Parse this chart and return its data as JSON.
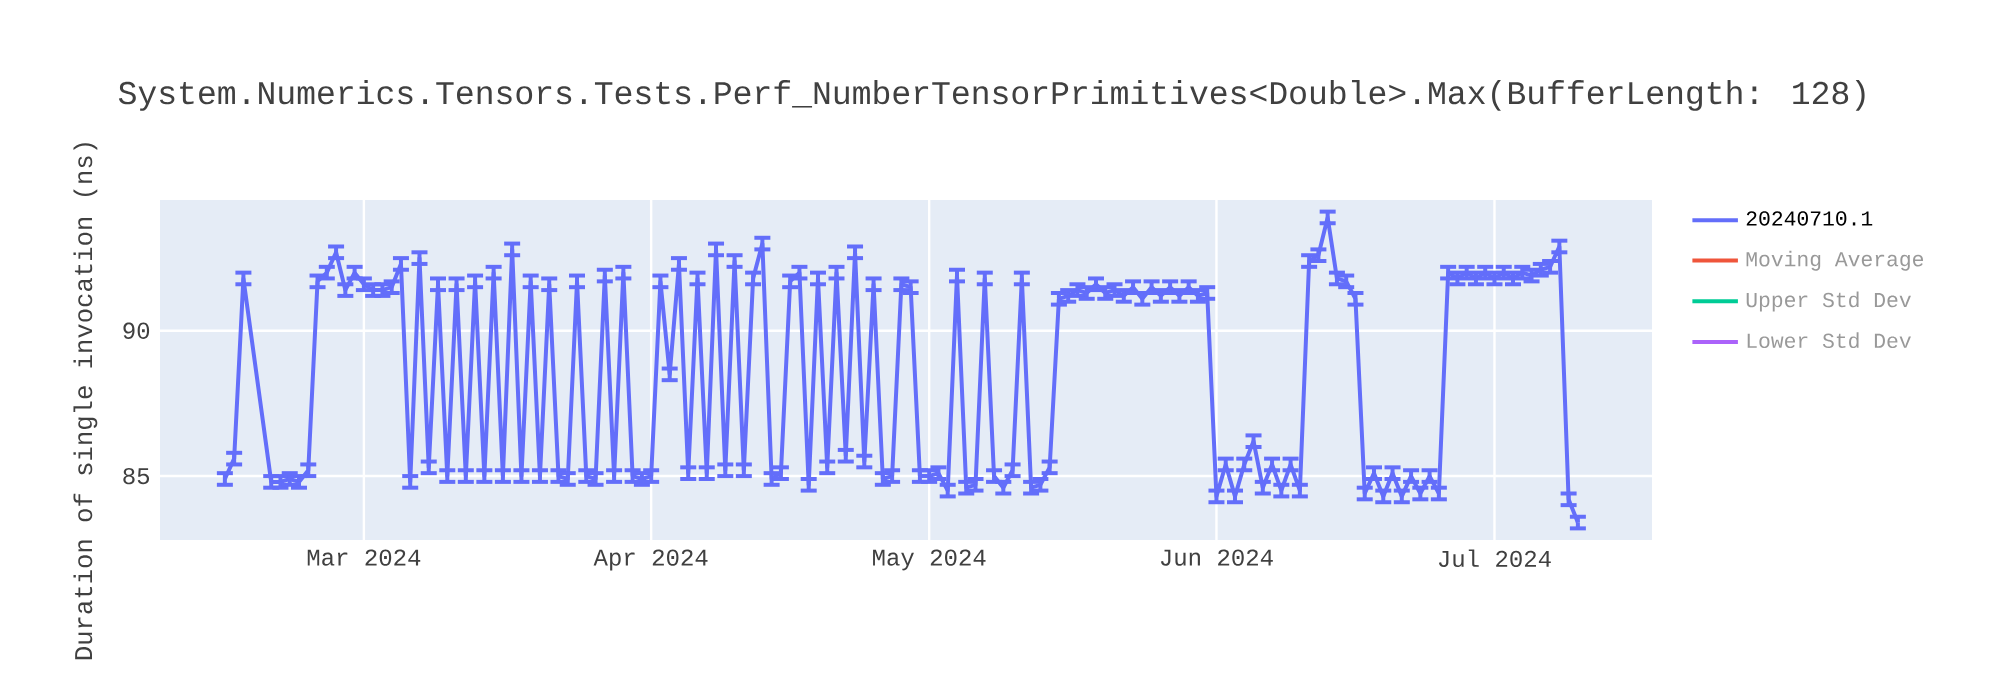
{
  "chart_data": {
    "type": "line",
    "title": "System.Numerics.Tensors.Tests.Perf_NumberTensorPrimitives<Double>.Max(BufferLength: 128)",
    "ylabel": "Duration of single invocation (ns)",
    "x": [
      "2024-02-15",
      "2024-02-16",
      "2024-02-17",
      "2024-02-20",
      "2024-02-21",
      "2024-02-22",
      "2024-02-23",
      "2024-02-24",
      "2024-02-25",
      "2024-02-26",
      "2024-02-27",
      "2024-02-28",
      "2024-02-29",
      "2024-03-01",
      "2024-03-02",
      "2024-03-03",
      "2024-03-04",
      "2024-03-05",
      "2024-03-06",
      "2024-03-07",
      "2024-03-08",
      "2024-03-09",
      "2024-03-10",
      "2024-03-11",
      "2024-03-12",
      "2024-03-13",
      "2024-03-14",
      "2024-03-15",
      "2024-03-16",
      "2024-03-17",
      "2024-03-18",
      "2024-03-19",
      "2024-03-20",
      "2024-03-21",
      "2024-03-22",
      "2024-03-23",
      "2024-03-24",
      "2024-03-25",
      "2024-03-26",
      "2024-03-27",
      "2024-03-28",
      "2024-03-29",
      "2024-03-30",
      "2024-03-31",
      "2024-04-01",
      "2024-04-02",
      "2024-04-03",
      "2024-04-04",
      "2024-04-05",
      "2024-04-06",
      "2024-04-07",
      "2024-04-08",
      "2024-04-09",
      "2024-04-10",
      "2024-04-11",
      "2024-04-12",
      "2024-04-13",
      "2024-04-14",
      "2024-04-15",
      "2024-04-16",
      "2024-04-17",
      "2024-04-18",
      "2024-04-19",
      "2024-04-20",
      "2024-04-21",
      "2024-04-22",
      "2024-04-23",
      "2024-04-24",
      "2024-04-25",
      "2024-04-26",
      "2024-04-27",
      "2024-04-28",
      "2024-04-29",
      "2024-04-30",
      "2024-05-01",
      "2024-05-02",
      "2024-05-03",
      "2024-05-04",
      "2024-05-05",
      "2024-05-06",
      "2024-05-07",
      "2024-05-08",
      "2024-05-09",
      "2024-05-10",
      "2024-05-11",
      "2024-05-12",
      "2024-05-13",
      "2024-05-14",
      "2024-05-15",
      "2024-05-16",
      "2024-05-17",
      "2024-05-18",
      "2024-05-19",
      "2024-05-20",
      "2024-05-21",
      "2024-05-22",
      "2024-05-23",
      "2024-05-24",
      "2024-05-25",
      "2024-05-26",
      "2024-05-27",
      "2024-05-28",
      "2024-05-29",
      "2024-05-30",
      "2024-05-31",
      "2024-06-01",
      "2024-06-02",
      "2024-06-03",
      "2024-06-04",
      "2024-06-05",
      "2024-06-06",
      "2024-06-07",
      "2024-06-08",
      "2024-06-09",
      "2024-06-10",
      "2024-06-11",
      "2024-06-12",
      "2024-06-13",
      "2024-06-14",
      "2024-06-15",
      "2024-06-16",
      "2024-06-17",
      "2024-06-18",
      "2024-06-19",
      "2024-06-20",
      "2024-06-21",
      "2024-06-22",
      "2024-06-23",
      "2024-06-24",
      "2024-06-25",
      "2024-06-26",
      "2024-06-27",
      "2024-06-28",
      "2024-06-29",
      "2024-06-30",
      "2024-07-01",
      "2024-07-02",
      "2024-07-03",
      "2024-07-04",
      "2024-07-05",
      "2024-07-06",
      "2024-07-07",
      "2024-07-08",
      "2024-07-09",
      "2024-07-10"
    ],
    "series": [
      {
        "name": "20240710.1",
        "color": "#636efa",
        "values": [
          84.9,
          85.6,
          91.8,
          84.8,
          84.8,
          84.9,
          84.8,
          85.2,
          91.7,
          92.0,
          92.7,
          91.4,
          92.0,
          91.6,
          91.4,
          91.4,
          91.5,
          92.3,
          84.8,
          92.5,
          85.3,
          91.6,
          85.0,
          91.6,
          85.0,
          91.7,
          85.0,
          92.0,
          85.0,
          92.8,
          85.0,
          91.7,
          85.0,
          91.6,
          85.0,
          84.9,
          91.7,
          85.0,
          84.9,
          91.9,
          85.0,
          92.0,
          85.0,
          84.9,
          85.0,
          91.7,
          88.5,
          92.3,
          85.1,
          91.8,
          85.1,
          92.8,
          85.2,
          92.4,
          85.2,
          91.8,
          93.0,
          84.9,
          85.1,
          91.7,
          92.0,
          84.7,
          91.8,
          85.3,
          92.0,
          85.7,
          92.7,
          85.5,
          91.6,
          84.9,
          85.0,
          91.6,
          91.5,
          85.0,
          85.0,
          85.1,
          84.5,
          91.9,
          84.6,
          84.7,
          91.8,
          85.0,
          84.6,
          85.2,
          91.8,
          84.6,
          84.7,
          85.3,
          91.1,
          91.2,
          91.4,
          91.3,
          91.6,
          91.3,
          91.4,
          91.2,
          91.5,
          91.1,
          91.5,
          91.2,
          91.5,
          91.2,
          91.5,
          91.2,
          91.3,
          84.3,
          85.4,
          84.3,
          85.4,
          86.2,
          84.6,
          85.4,
          84.5,
          85.4,
          84.5,
          92.4,
          92.6,
          93.9,
          91.8,
          91.7,
          91.1,
          84.4,
          85.1,
          84.3,
          85.1,
          84.3,
          85.0,
          84.4,
          85.0,
          84.4,
          92.0,
          91.8,
          92.0,
          91.8,
          92.0,
          91.8,
          92.0,
          91.8,
          92.0,
          91.9,
          92.1,
          92.2,
          92.9,
          84.2,
          83.4
        ],
        "errors": [
          0.2,
          0.2,
          0.2,
          0.2,
          0.2,
          0.2,
          0.2,
          0.2,
          0.2,
          0.2,
          0.2,
          0.2,
          0.2,
          0.2,
          0.2,
          0.2,
          0.2,
          0.2,
          0.2,
          0.2,
          0.2,
          0.2,
          0.2,
          0.2,
          0.2,
          0.2,
          0.2,
          0.2,
          0.2,
          0.2,
          0.2,
          0.2,
          0.2,
          0.2,
          0.2,
          0.2,
          0.2,
          0.2,
          0.2,
          0.2,
          0.2,
          0.2,
          0.2,
          0.2,
          0.2,
          0.2,
          0.2,
          0.2,
          0.2,
          0.2,
          0.2,
          0.2,
          0.2,
          0.2,
          0.2,
          0.2,
          0.2,
          0.2,
          0.2,
          0.2,
          0.2,
          0.2,
          0.2,
          0.2,
          0.2,
          0.2,
          0.2,
          0.2,
          0.2,
          0.2,
          0.2,
          0.2,
          0.2,
          0.2,
          0.2,
          0.2,
          0.2,
          0.2,
          0.2,
          0.2,
          0.2,
          0.2,
          0.2,
          0.2,
          0.2,
          0.2,
          0.2,
          0.2,
          0.2,
          0.2,
          0.2,
          0.2,
          0.2,
          0.2,
          0.2,
          0.2,
          0.2,
          0.2,
          0.2,
          0.2,
          0.2,
          0.2,
          0.2,
          0.2,
          0.2,
          0.2,
          0.2,
          0.2,
          0.2,
          0.2,
          0.2,
          0.2,
          0.2,
          0.2,
          0.2,
          0.2,
          0.2,
          0.2,
          0.2,
          0.2,
          0.2,
          0.2,
          0.2,
          0.2,
          0.2,
          0.2,
          0.2,
          0.2,
          0.2,
          0.2,
          0.2,
          0.2,
          0.2,
          0.2,
          0.2,
          0.2,
          0.2,
          0.2,
          0.2,
          0.2,
          0.2,
          0.2,
          0.2,
          0.2,
          0.2
        ]
      },
      {
        "name": "Moving Average",
        "color": "#ef553b",
        "values": [
          null,
          null,
          null,
          null,
          null,
          null,
          null,
          null,
          null,
          null,
          null,
          null,
          null,
          null,
          null,
          null,
          null,
          null,
          null,
          null,
          null,
          null,
          null,
          null,
          null,
          null,
          null,
          null,
          null,
          null,
          null,
          null,
          null,
          null,
          null,
          null,
          null,
          null,
          null,
          null,
          null,
          null,
          null,
          null,
          null,
          null,
          null,
          null,
          null,
          null,
          null,
          null,
          null,
          null,
          null,
          null,
          null,
          null,
          null,
          null,
          null,
          null,
          null,
          null,
          null,
          null,
          null,
          null,
          null,
          null,
          null,
          null,
          null,
          null,
          null,
          null,
          null,
          null,
          null,
          null,
          null,
          null,
          null,
          null,
          null,
          null,
          null,
          null,
          null,
          null,
          null,
          null,
          null,
          null,
          null,
          null,
          null,
          null,
          null,
          null,
          null,
          null,
          null,
          null,
          null,
          null,
          null,
          null,
          null,
          null,
          null,
          null,
          null,
          null,
          null,
          null,
          null,
          null,
          null,
          null,
          null,
          null,
          null,
          null,
          null,
          null,
          null,
          null,
          null,
          null,
          null,
          null,
          null,
          null,
          null,
          null,
          null,
          null,
          null,
          null,
          null,
          null,
          null,
          null,
          null
        ]
      },
      {
        "name": "Upper Std Dev",
        "color": "#00cc96",
        "values": [
          null,
          null,
          null,
          null,
          null,
          null,
          null,
          null,
          null,
          null,
          null,
          null,
          null,
          null,
          null,
          null,
          null,
          null,
          null,
          null,
          null,
          null,
          null,
          null,
          null,
          null,
          null,
          null,
          null,
          null,
          null,
          null,
          null,
          null,
          null,
          null,
          null,
          null,
          null,
          null,
          null,
          null,
          null,
          null,
          null,
          null,
          null,
          null,
          null,
          null,
          null,
          null,
          null,
          null,
          null,
          null,
          null,
          null,
          null,
          null,
          null,
          null,
          null,
          null,
          null,
          null,
          null,
          null,
          null,
          null,
          null,
          null,
          null,
          null,
          null,
          null,
          null,
          null,
          null,
          null,
          null,
          null,
          null,
          null,
          null,
          null,
          null,
          null,
          null,
          null,
          null,
          null,
          null,
          null,
          null,
          null,
          null,
          null,
          null,
          null,
          null,
          null,
          null,
          null,
          null,
          null,
          null,
          null,
          null,
          null,
          null,
          null,
          null,
          null,
          null,
          null,
          null,
          null,
          null,
          null,
          null,
          null,
          null,
          null,
          null,
          null,
          null,
          null,
          null,
          null,
          null,
          null,
          null,
          null,
          null,
          null,
          null,
          null,
          null,
          null,
          null,
          null,
          null,
          null,
          null
        ]
      },
      {
        "name": "Lower Std Dev",
        "color": "#ab63fa",
        "values": [
          null,
          null,
          null,
          null,
          null,
          null,
          null,
          null,
          null,
          null,
          null,
          null,
          null,
          null,
          null,
          null,
          null,
          null,
          null,
          null,
          null,
          null,
          null,
          null,
          null,
          null,
          null,
          null,
          null,
          null,
          null,
          null,
          null,
          null,
          null,
          null,
          null,
          null,
          null,
          null,
          null,
          null,
          null,
          null,
          null,
          null,
          null,
          null,
          null,
          null,
          null,
          null,
          null,
          null,
          null,
          null,
          null,
          null,
          null,
          null,
          null,
          null,
          null,
          null,
          null,
          null,
          null,
          null,
          null,
          null,
          null,
          null,
          null,
          null,
          null,
          null,
          null,
          null,
          null,
          null,
          null,
          null,
          null,
          null,
          null,
          null,
          null,
          null,
          null,
          null,
          null,
          null,
          null,
          null,
          null,
          null,
          null,
          null,
          null,
          null,
          null,
          null,
          null,
          null,
          null,
          null,
          null,
          null,
          null,
          null,
          null,
          null,
          null,
          null,
          null,
          null,
          null,
          null,
          null,
          null,
          null,
          null,
          null,
          null,
          null,
          null,
          null,
          null,
          null,
          null,
          null,
          null,
          null,
          null,
          null,
          null,
          null,
          null,
          null,
          null,
          null,
          null,
          null,
          null,
          null
        ]
      }
    ],
    "xlim": [
      "2024-02-08",
      "2024-07-18"
    ],
    "xticks": [
      {
        "value": "2024-03-01",
        "label": "Mar 2024"
      },
      {
        "value": "2024-04-01",
        "label": "Apr 2024"
      },
      {
        "value": "2024-05-01",
        "label": "May 2024"
      },
      {
        "value": "2024-06-01",
        "label": "Jun 2024"
      },
      {
        "value": "2024-07-01",
        "label": "Jul 2024"
      }
    ],
    "ylim": [
      82.8,
      94.5
    ],
    "yticks": [
      85,
      90
    ],
    "grid": true,
    "legend": "top right",
    "marker": "none",
    "line_style": "solid"
  }
}
